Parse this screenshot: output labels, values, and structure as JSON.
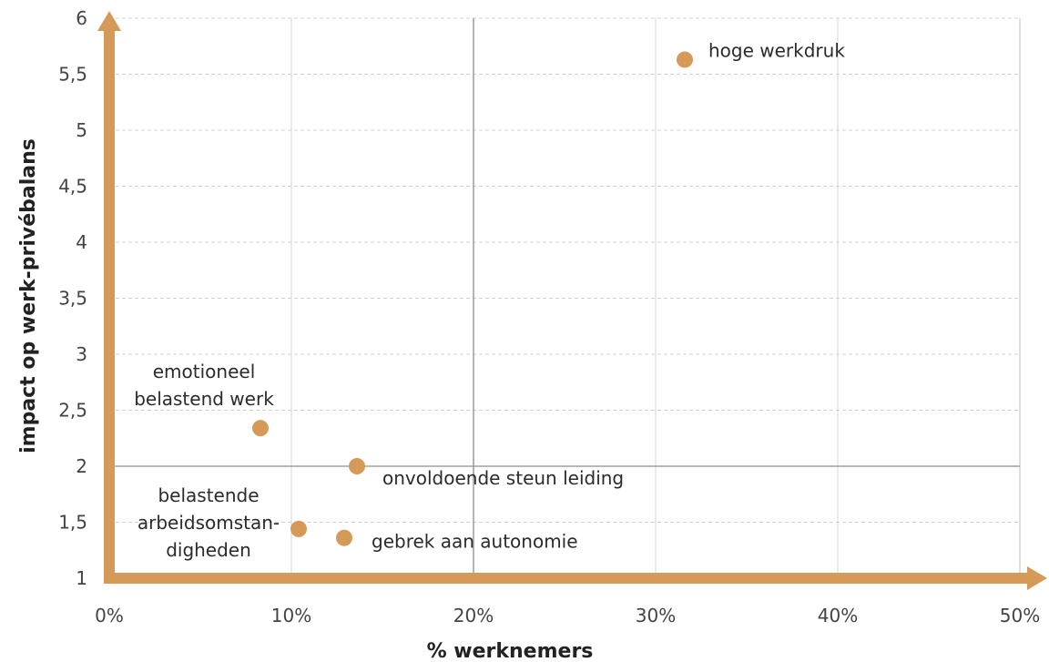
{
  "chart_data": {
    "type": "scatter",
    "xlabel": "% werknemers",
    "ylabel": "impact op werk-privébalans",
    "xlim": [
      0,
      50
    ],
    "ylim": [
      1,
      6
    ],
    "x_ticks": [
      "0%",
      "10%",
      "20%",
      "30%",
      "40%",
      "50%"
    ],
    "y_ticks": [
      "1",
      "1,5",
      "2",
      "2,5",
      "3",
      "3,5",
      "4",
      "4,5",
      "5",
      "5,5",
      "6"
    ],
    "grid": true,
    "quadrant_lines": {
      "x": 20,
      "y": 2
    },
    "point_color": "#d59a57",
    "axis_color": "#d59a57",
    "points": [
      {
        "x": 31.6,
        "y": 5.63,
        "label_lines": [
          "hoge werkdruk"
        ]
      },
      {
        "x": 8.3,
        "y": 2.34,
        "label_lines": [
          "emotioneel",
          "belastend werk"
        ]
      },
      {
        "x": 13.6,
        "y": 2.0,
        "label_lines": [
          "onvoldoende steun leiding"
        ]
      },
      {
        "x": 10.4,
        "y": 1.44,
        "label_lines": [
          "belastende",
          "arbeidsomstan-",
          "digheden"
        ]
      },
      {
        "x": 12.9,
        "y": 1.36,
        "label_lines": [
          "gebrek aan autonomie"
        ]
      }
    ]
  }
}
